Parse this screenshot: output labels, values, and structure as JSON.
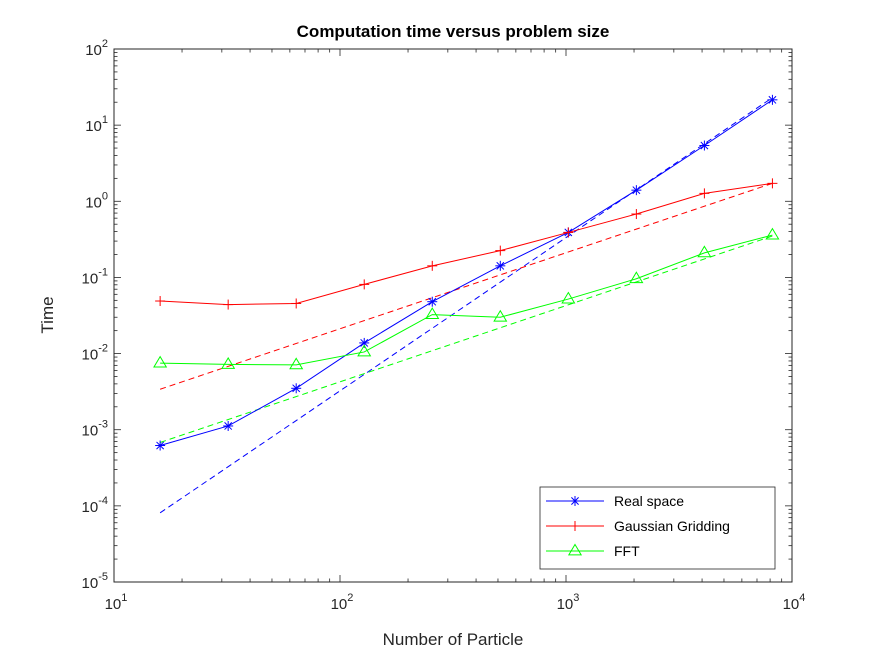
{
  "chart_data": {
    "type": "line",
    "title": "Computation time versus problem size",
    "xlabel": "Number of Particle",
    "ylabel": "Time",
    "xscale": "log",
    "yscale": "log",
    "xlim": [
      10,
      10000
    ],
    "ylim": [
      1e-05,
      100
    ],
    "x_ticks": [
      {
        "base": "10",
        "exp": "1"
      },
      {
        "base": "10",
        "exp": "2"
      },
      {
        "base": "10",
        "exp": "3"
      },
      {
        "base": "10",
        "exp": "4"
      }
    ],
    "y_ticks": [
      {
        "base": "10",
        "exp": "-5"
      },
      {
        "base": "10",
        "exp": "-4"
      },
      {
        "base": "10",
        "exp": "-3"
      },
      {
        "base": "10",
        "exp": "-2"
      },
      {
        "base": "10",
        "exp": "-1"
      },
      {
        "base": "10",
        "exp": "0"
      },
      {
        "base": "10",
        "exp": "1"
      },
      {
        "base": "10",
        "exp": "2"
      }
    ],
    "grid": false,
    "legend_position": "bottom-right",
    "x": [
      16,
      32,
      64,
      128,
      256,
      512,
      1024,
      2048,
      4096,
      8192
    ],
    "series": [
      {
        "name": "Real space",
        "color": "#0000ff",
        "marker": "asterisk",
        "line": "solid",
        "values": [
          0.00062,
          0.00112,
          0.0035,
          0.0138,
          0.048,
          0.142,
          0.39,
          1.4,
          5.4,
          21.5
        ]
      },
      {
        "name": "Gaussian Gridding",
        "color": "#ff0000",
        "marker": "plus",
        "line": "solid",
        "values": [
          0.049,
          0.044,
          0.0455,
          0.081,
          0.142,
          0.225,
          0.39,
          0.68,
          1.27,
          1.72
        ]
      },
      {
        "name": "FFT",
        "color": "#00ff00",
        "marker": "triangle",
        "line": "solid",
        "values": [
          0.0075,
          0.0072,
          0.0071,
          0.0105,
          0.0325,
          0.03,
          0.052,
          0.096,
          0.21,
          0.36
        ]
      }
    ],
    "fit_lines": [
      {
        "color": "#0000ff",
        "line": "dashed",
        "x": [
          16,
          8192
        ],
        "values": [
          8.1e-05,
          23
        ]
      },
      {
        "color": "#ff0000",
        "line": "dashed",
        "x": [
          16,
          8192
        ],
        "values": [
          0.0034,
          1.72
        ]
      },
      {
        "color": "#00ff00",
        "line": "dashed",
        "x": [
          16,
          8192
        ],
        "values": [
          0.00068,
          0.35
        ]
      }
    ]
  }
}
